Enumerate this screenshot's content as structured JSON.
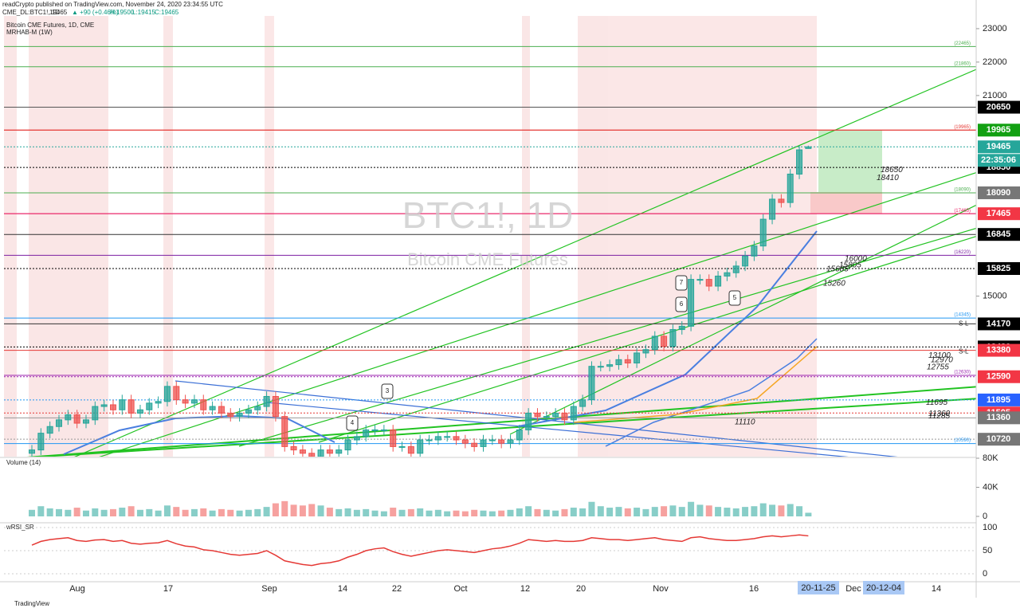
{
  "header": {
    "publisher": "readCrypto published on TradingView.com, November 24, 2020 23:34:55 UTC",
    "symbol": "CME_DL:BTC1!, 1D",
    "last": 19465,
    "change": "▲ +90 (+0.46%)",
    "high": "H:19500",
    "low": "L:19415",
    "close": "C:19465",
    "footer": "TradingView"
  },
  "chart_data": {
    "type": "candlestick",
    "title": "Bitcoin CME Futures, 1D, CME",
    "indicator": "MRHAB-M (1W)",
    "watermark": "BTC1!, 1D",
    "watermark_sub": "Bitcoin CME Futures",
    "ylim": [
      10200,
      23380
    ],
    "yticks": [
      15000,
      21000,
      22000,
      23000
    ],
    "up_color": "#26a69a",
    "down_color": "#ef5350",
    "ohlc": [
      [
        10300,
        10550,
        10150,
        10400
      ],
      [
        10400,
        11050,
        10250,
        10900
      ],
      [
        10900,
        11250,
        10750,
        11100
      ],
      [
        11100,
        11450,
        10950,
        11300
      ],
      [
        11300,
        11600,
        11150,
        11450
      ],
      [
        11450,
        11600,
        11050,
        11200
      ],
      [
        11200,
        11450,
        11050,
        11300
      ],
      [
        11300,
        11850,
        11150,
        11700
      ],
      [
        11700,
        11900,
        11550,
        11750
      ],
      [
        11750,
        11900,
        11450,
        11600
      ],
      [
        11600,
        12050,
        11450,
        11900
      ],
      [
        11900,
        12050,
        11350,
        11500
      ],
      [
        11500,
        11750,
        11350,
        11600
      ],
      [
        11600,
        11950,
        11450,
        11800
      ],
      [
        11800,
        12000,
        11650,
        11850
      ],
      [
        11850,
        12450,
        11700,
        12300
      ],
      [
        12300,
        12450,
        11750,
        11900
      ],
      [
        11900,
        12050,
        11650,
        11800
      ],
      [
        11800,
        12050,
        11650,
        11900
      ],
      [
        11900,
        12050,
        11450,
        11600
      ],
      [
        11600,
        11850,
        11450,
        11700
      ],
      [
        11700,
        11850,
        11350,
        11500
      ],
      [
        11500,
        11650,
        11250,
        11400
      ],
      [
        11400,
        11650,
        11250,
        11500
      ],
      [
        11500,
        11750,
        11350,
        11600
      ],
      [
        11600,
        11850,
        11450,
        11700
      ],
      [
        11700,
        12150,
        11550,
        12000
      ],
      [
        12000,
        12150,
        11250,
        11400
      ],
      [
        11400,
        11550,
        10350,
        10500
      ],
      [
        10500,
        10650,
        10250,
        10400
      ],
      [
        10400,
        10550,
        10150,
        10300
      ],
      [
        10300,
        10450,
        10050,
        10200
      ],
      [
        10200,
        10550,
        10050,
        10400
      ],
      [
        10400,
        10550,
        10150,
        10300
      ],
      [
        10300,
        10550,
        10150,
        10400
      ],
      [
        10400,
        10850,
        10250,
        10700
      ],
      [
        10700,
        10950,
        10550,
        10800
      ],
      [
        10800,
        11150,
        10650,
        11000
      ],
      [
        11000,
        11150,
        10850,
        11000
      ],
      [
        11000,
        11150,
        10850,
        11000
      ],
      [
        11000,
        11150,
        10350,
        10500
      ],
      [
        10500,
        10650,
        10350,
        10500
      ],
      [
        10500,
        10650,
        10150,
        10300
      ],
      [
        10300,
        10850,
        10150,
        10700
      ],
      [
        10700,
        10850,
        10550,
        10700
      ],
      [
        10700,
        10950,
        10550,
        10800
      ],
      [
        10800,
        10950,
        10650,
        10800
      ],
      [
        10800,
        10950,
        10550,
        10700
      ],
      [
        10700,
        10850,
        10450,
        10600
      ],
      [
        10600,
        10750,
        10350,
        10500
      ],
      [
        10500,
        10850,
        10350,
        10700
      ],
      [
        10700,
        10850,
        10550,
        10700
      ],
      [
        10700,
        10850,
        10450,
        10600
      ],
      [
        10600,
        10850,
        10450,
        10700
      ],
      [
        10700,
        11150,
        10550,
        11000
      ],
      [
        11000,
        11650,
        10850,
        11500
      ],
      [
        11500,
        11650,
        11250,
        11400
      ],
      [
        11400,
        11550,
        11250,
        11400
      ],
      [
        11400,
        11650,
        11250,
        11500
      ],
      [
        11500,
        11650,
        11150,
        11300
      ],
      [
        11300,
        11850,
        11150,
        11700
      ],
      [
        11700,
        12050,
        11550,
        11900
      ],
      [
        11900,
        13050,
        11750,
        12900
      ],
      [
        12900,
        13050,
        12750,
        12900
      ],
      [
        12900,
        13100,
        12750,
        12950
      ],
      [
        12950,
        13250,
        12800,
        13100
      ],
      [
        13100,
        13250,
        12850,
        13000
      ],
      [
        13000,
        13450,
        12850,
        13300
      ],
      [
        13300,
        13550,
        13150,
        13400
      ],
      [
        13400,
        13950,
        13250,
        13800
      ],
      [
        13800,
        13950,
        13350,
        13500
      ],
      [
        13500,
        14150,
        13350,
        14000
      ],
      [
        14000,
        14250,
        13850,
        14100
      ],
      [
        14100,
        15650,
        13950,
        15500
      ],
      [
        15500,
        15650,
        15350,
        15500
      ],
      [
        15500,
        15650,
        15150,
        15300
      ],
      [
        15300,
        15750,
        15150,
        15600
      ],
      [
        15600,
        15850,
        15450,
        15700
      ],
      [
        15700,
        16050,
        15550,
        15900
      ],
      [
        15900,
        16350,
        15750,
        16200
      ],
      [
        16200,
        16650,
        16050,
        16500
      ],
      [
        16500,
        17450,
        16350,
        17300
      ],
      [
        17300,
        18050,
        17150,
        17900
      ],
      [
        17900,
        18050,
        17650,
        17800
      ],
      [
        17800,
        18800,
        17650,
        18650
      ],
      [
        18650,
        19500,
        18500,
        19375
      ],
      [
        19415,
        19500,
        19415,
        19465
      ]
    ],
    "levels": [
      {
        "value": 20650,
        "line": "#555555",
        "tag": "#000000",
        "dash": false
      },
      {
        "value": 19965,
        "line": "#e53935",
        "tag": "#12a012",
        "dash": false
      },
      {
        "value": 19465,
        "line": "#26a69a",
        "tag": "#26a69a",
        "dash": true
      },
      {
        "value": 18850,
        "line": "#000000",
        "tag": "#000000",
        "dash": true
      },
      {
        "value": 18090,
        "line": "#4caf50",
        "tag": "#777777",
        "dash": false
      },
      {
        "value": 17465,
        "line": "#e91e63",
        "tag": "#f23645",
        "dash": false
      },
      {
        "value": 16845,
        "line": "#333333",
        "tag": "#000000",
        "dash": false
      },
      {
        "value": 15825,
        "line": "#000000",
        "tag": "#000000",
        "dash": true
      },
      {
        "value": 14170,
        "line": "#333333",
        "tag": "#000000",
        "dash": false
      },
      {
        "value": 13480,
        "line": "#000000",
        "tag": "#000000",
        "dash": true
      },
      {
        "value": 13380,
        "line": "#e53935",
        "tag": "#f23645",
        "dash": false
      },
      {
        "value": 12590,
        "line": "#9c27b0",
        "tag": "#f23645",
        "dash": true
      },
      {
        "value": 11895,
        "line": "#2196f3",
        "tag": "#2962ff",
        "dash": true
      },
      {
        "value": 11505,
        "line": "#e53935",
        "tag": "#f23645",
        "dash": true
      },
      {
        "value": 11360,
        "line": "#999999",
        "tag": "#777777",
        "dash": false
      },
      {
        "value": 10720,
        "line": "#999999",
        "tag": "#777777",
        "dash": true
      }
    ],
    "countdown": "22:35:06",
    "ref_levels": [
      {
        "value": 22465,
        "label": "(22465)"
      },
      {
        "value": 21860,
        "label": "(21860)"
      },
      {
        "value": 19965,
        "label": "(19965)"
      },
      {
        "value": 18090,
        "label": "(18090)"
      },
      {
        "value": 17465,
        "label": "(17465)"
      },
      {
        "value": 16220,
        "label": "(16220)"
      },
      {
        "value": 14345,
        "label": "(14345)"
      },
      {
        "value": 12630,
        "label": "(12630)"
      },
      {
        "value": 10590,
        "label": "(10590)"
      }
    ],
    "ref_colors": [
      "#4caf50",
      "#4caf50",
      "#e53935",
      "#4caf50",
      "#e91e63",
      "#7b1fa2",
      "#2196f3",
      "#9c27b0",
      "#2196f3"
    ],
    "notes": [
      18650,
      18410,
      16000,
      15805,
      15685,
      15260,
      13100,
      12970,
      12755,
      11695,
      11360,
      11285,
      11110
    ],
    "stop_labels": [
      "S-L",
      "S-L"
    ],
    "markers": [
      7,
      6,
      5,
      4,
      3
    ],
    "x_labels": [
      "Aug",
      "17",
      "Sep",
      "14",
      "22",
      "Oct",
      "12",
      "20",
      "Nov",
      "16",
      "Dec",
      "14"
    ],
    "x_tags": [
      "20-11-25",
      "20-12-04"
    ],
    "volume": {
      "title": "Volume (14)",
      "ylim": [
        0,
        80000
      ],
      "yticks": [
        {
          "value": 0,
          "label": "0"
        },
        {
          "value": 40000,
          "label": "40K"
        },
        {
          "value": 80000,
          "label": "80K"
        }
      ],
      "values": [
        9000,
        14000,
        11000,
        10000,
        9000,
        12000,
        8000,
        11000,
        9000,
        10000,
        12000,
        14000,
        9000,
        10000,
        8000,
        15000,
        13000,
        9000,
        10000,
        11000,
        8000,
        10000,
        9000,
        8000,
        9000,
        10000,
        13000,
        18000,
        21000,
        16000,
        15000,
        17000,
        15000,
        12000,
        10000,
        11000,
        9000,
        10000,
        8000,
        7000,
        12000,
        9000,
        10000,
        11000,
        8000,
        9000,
        7000,
        8000,
        7000,
        9000,
        8000,
        7000,
        8000,
        9000,
        11000,
        14000,
        10000,
        9000,
        8000,
        10000,
        12000,
        11000,
        20000,
        14000,
        12000,
        13000,
        11000,
        12000,
        10000,
        13000,
        14000,
        15000,
        13000,
        20000,
        16000,
        15000,
        13000,
        12000,
        11000,
        13000,
        14000,
        18000,
        16000,
        15000,
        17000,
        14000,
        5000
      ]
    },
    "rsi": {
      "title": "wRSI_SR",
      "ylim": [
        0,
        100
      ],
      "yticks": [
        0,
        50,
        100
      ],
      "values": [
        62,
        70,
        74,
        76,
        78,
        72,
        70,
        73,
        74,
        70,
        72,
        66,
        64,
        66,
        67,
        72,
        65,
        60,
        58,
        52,
        50,
        46,
        42,
        40,
        42,
        44,
        50,
        40,
        28,
        24,
        20,
        18,
        22,
        24,
        28,
        36,
        42,
        50,
        54,
        56,
        48,
        42,
        38,
        42,
        46,
        50,
        52,
        50,
        48,
        46,
        50,
        54,
        56,
        60,
        66,
        74,
        72,
        70,
        72,
        70,
        70,
        72,
        78,
        76,
        74,
        74,
        72,
        74,
        76,
        78,
        74,
        72,
        70,
        78,
        80,
        76,
        74,
        72,
        72,
        74,
        76,
        80,
        82,
        80,
        82,
        84,
        82
      ]
    }
  }
}
